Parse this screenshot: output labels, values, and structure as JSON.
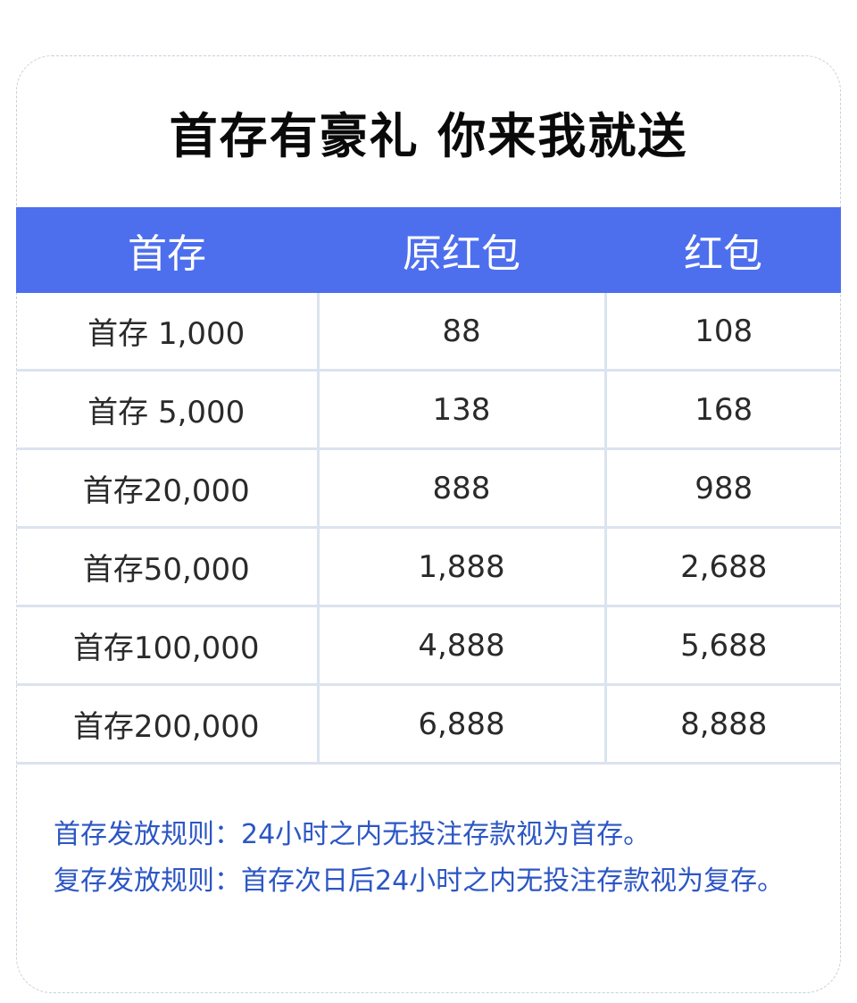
{
  "title": "首存有豪礼 你来我就送",
  "table": {
    "headers": [
      "首存",
      "原红包",
      "红包"
    ],
    "rows": [
      [
        "首存 1,000",
        "88",
        "108"
      ],
      [
        "首存 5,000",
        "138",
        "168"
      ],
      [
        "首存20,000",
        "888",
        "988"
      ],
      [
        "首存50,000",
        "1,888",
        "2,688"
      ],
      [
        "首存100,000",
        "4,888",
        "5,688"
      ],
      [
        "首存200,000",
        "6,888",
        "8,888"
      ]
    ]
  },
  "rules": [
    "首存发放规则：24小时之内无投注存款视为首存。",
    "复存发放规则：首存次日后24小时之内无投注存款视为复存。"
  ],
  "colors": {
    "header_bg": "#4d6fee",
    "rules_text": "#2c56c4"
  }
}
